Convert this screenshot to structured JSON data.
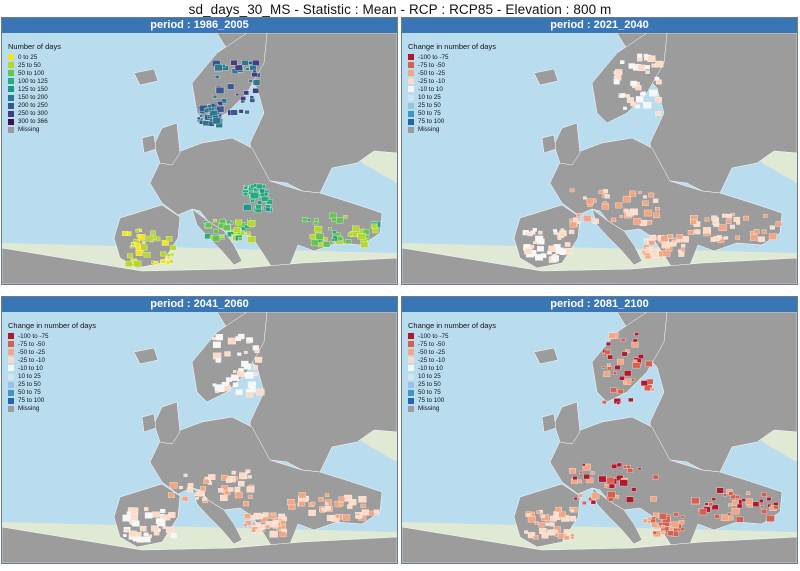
{
  "title": "sd_days_30_MS - Statistic : Mean - RCP : RCP85 - Elevation : 800 m",
  "colors": {
    "sea": "#b9ddef",
    "land_outside": "#dfe9d3",
    "missing": "#9c9c9c",
    "header": "#3a75b4"
  },
  "panels": [
    {
      "header": "period : 1986_2005",
      "legend_title": "Number of days",
      "legend": [
        {
          "label": "0 to 25",
          "color": "#f2e51c"
        },
        {
          "label": "25 to 50",
          "color": "#b7d72b"
        },
        {
          "label": "50 to 100",
          "color": "#63c54e"
        },
        {
          "label": "100 to 125",
          "color": "#27ab7b"
        },
        {
          "label": "125 to 150",
          "color": "#1f968b"
        },
        {
          "label": "150 to 200",
          "color": "#2a788e"
        },
        {
          "label": "200 to 250",
          "color": "#38598c"
        },
        {
          "label": "250 to 300",
          "color": "#433d84"
        },
        {
          "label": "300 to 366",
          "color": "#440d54"
        },
        {
          "label": "Missing",
          "color": "#9c9c9c"
        }
      ]
    },
    {
      "header": "period : 2021_2040",
      "legend_title": "Change in number of days",
      "legend": [
        {
          "label": "-100 to -75",
          "color": "#b2182b"
        },
        {
          "label": "-75 to -50",
          "color": "#d6604d"
        },
        {
          "label": "-50 to -25",
          "color": "#f4a582"
        },
        {
          "label": "-25 to -10",
          "color": "#fddbc7"
        },
        {
          "label": "-10 to 10",
          "color": "#f7f7f7"
        },
        {
          "label": "10 to 25",
          "color": "#d1e5f0"
        },
        {
          "label": "25 to 50",
          "color": "#92c5de"
        },
        {
          "label": "50 to 75",
          "color": "#4393c3"
        },
        {
          "label": "75 to 100",
          "color": "#2166ac"
        },
        {
          "label": "Missing",
          "color": "#9c9c9c"
        }
      ]
    },
    {
      "header": "period : 2041_2060",
      "legend_title": "Change in number of days",
      "legend": [
        {
          "label": "-100 to -75",
          "color": "#b2182b"
        },
        {
          "label": "-75 to -50",
          "color": "#d6604d"
        },
        {
          "label": "-50 to -25",
          "color": "#f4a582"
        },
        {
          "label": "-25 to -10",
          "color": "#fddbc7"
        },
        {
          "label": "-10 to 10",
          "color": "#f7f7f7"
        },
        {
          "label": "10 to 25",
          "color": "#d1e5f0"
        },
        {
          "label": "25 to 50",
          "color": "#92c5de"
        },
        {
          "label": "50 to 75",
          "color": "#4393c3"
        },
        {
          "label": "75 to 100",
          "color": "#2166ac"
        },
        {
          "label": "Missing",
          "color": "#9c9c9c"
        }
      ]
    },
    {
      "header": "period : 2081_2100",
      "legend_title": "Change in number of days",
      "legend": [
        {
          "label": "-100 to -75",
          "color": "#b2182b"
        },
        {
          "label": "-75 to -50",
          "color": "#d6604d"
        },
        {
          "label": "-50 to -25",
          "color": "#f4a582"
        },
        {
          "label": "-25 to -10",
          "color": "#fddbc7"
        },
        {
          "label": "-10 to 10",
          "color": "#f7f7f7"
        },
        {
          "label": "10 to 25",
          "color": "#d1e5f0"
        },
        {
          "label": "25 to 50",
          "color": "#92c5de"
        },
        {
          "label": "50 to 75",
          "color": "#4393c3"
        },
        {
          "label": "75 to 100",
          "color": "#2166ac"
        },
        {
          "label": "Missing",
          "color": "#9c9c9c"
        }
      ]
    }
  ]
}
